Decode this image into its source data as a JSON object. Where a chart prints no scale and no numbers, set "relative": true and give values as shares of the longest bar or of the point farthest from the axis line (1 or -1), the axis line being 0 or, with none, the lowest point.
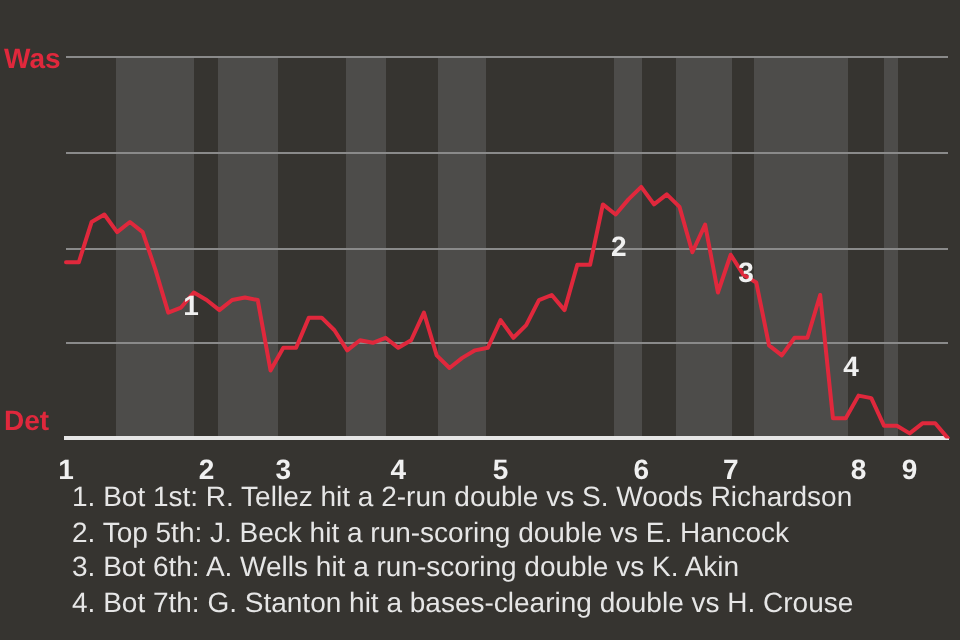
{
  "chart_data": {
    "type": "line",
    "relative": true,
    "categories": [
      "1",
      null,
      null,
      null,
      null,
      null,
      null,
      null,
      null,
      null,
      null,
      "2",
      null,
      null,
      null,
      null,
      null,
      "3",
      null,
      null,
      null,
      null,
      null,
      null,
      null,
      null,
      "4",
      null,
      null,
      null,
      null,
      null,
      null,
      null,
      "5",
      null,
      null,
      null,
      null,
      null,
      null,
      null,
      null,
      null,
      null,
      "6",
      null,
      null,
      null,
      null,
      null,
      null,
      "7",
      null,
      null,
      null,
      null,
      null,
      null,
      null,
      null,
      null,
      "8",
      null,
      null,
      null,
      "9",
      null,
      null,
      null
    ],
    "series": [
      {
        "color": "#e0283c",
        "values": [
          0.7,
          0.7,
          0.86,
          0.89,
          0.82,
          0.86,
          0.82,
          0.67,
          0.5,
          0.52,
          0.58,
          0.55,
          0.51,
          0.55,
          0.56,
          0.55,
          0.27,
          0.36,
          0.36,
          0.48,
          0.48,
          0.43,
          0.35,
          0.39,
          0.38,
          0.4,
          0.36,
          0.39,
          0.5,
          0.33,
          0.28,
          0.32,
          0.35,
          0.36,
          0.47,
          0.4,
          0.45,
          0.55,
          0.57,
          0.51,
          0.69,
          0.69,
          0.93,
          0.89,
          0.95,
          1,
          0.93,
          0.97,
          0.92,
          0.74,
          0.85,
          0.58,
          0.73,
          0.65,
          0.62,
          0.37,
          0.33,
          0.4,
          0.4,
          0.57,
          0.08,
          0.08,
          0.17,
          0.16,
          0.05,
          0.05,
          0.02,
          0.06,
          0.06,
          0
        ]
      }
    ],
    "ref_lines": [
      {
        "axis": "y",
        "value": 0.38,
        "color": "#8a8a8a"
      },
      {
        "axis": "y",
        "value": 0.76,
        "color": "#8a8a8a"
      },
      {
        "axis": "y",
        "value": 1.14,
        "color": "#8a8a8a"
      }
    ],
    "legend": false,
    "marker": "none",
    "line_style": "solid",
    "annotations": [
      "Was",
      "Det",
      "1",
      "2",
      "3",
      "4",
      "1. Bot 1st: R. Tellez hit a 2-run double vs S. Woods Richardson",
      "2. Top 5th: J. Beck hit a run-scoring double vs E. Hancock",
      "3. Bot 6th: A. Wells hit a run-scoring double vs K. Akin",
      "4. Bot 7th: G. Stanton hit a bases-clearing double vs H. Crouse"
    ]
  }
}
